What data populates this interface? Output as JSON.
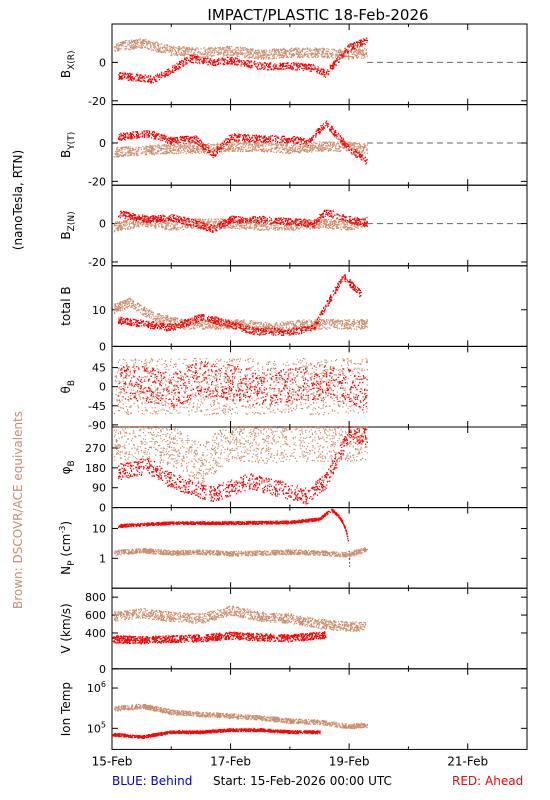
{
  "title": "IMPACT/PLASTIC   18-Feb-2026",
  "side_label_left": "(nanoTesla, RTN)",
  "side_label_brown": "Brown: DSCOVR/ACE equivalents",
  "footer": {
    "blue": "BLUE: Behind",
    "start": "Start: 15-Feb-2026 00:00 UTC",
    "red": "RED: Ahead"
  },
  "colors": {
    "ahead": "#ff0000",
    "ace": "#c98e6e",
    "behind": "#0000cc",
    "dash": "#666666"
  },
  "chart_data": {
    "type": "scatter",
    "x_range_days": [
      0,
      7
    ],
    "x_ticks": [
      {
        "day": 0,
        "label": "15-Feb"
      },
      {
        "day": 2,
        "label": "17-Feb"
      },
      {
        "day": 4,
        "label": "19-Feb"
      },
      {
        "day": 6,
        "label": "21-Feb"
      }
    ],
    "panels": [
      {
        "id": "bx",
        "ylabel": "BX(R)",
        "ylabel_main": "B",
        "ylabel_sub": "X(R)",
        "ylim": [
          -22,
          20
        ],
        "ticks": [
          -20,
          0
        ],
        "zero_line": true,
        "ace_profile": [
          [
            0,
            8
          ],
          [
            0.5,
            10
          ],
          [
            1,
            6
          ],
          [
            1.5,
            5
          ],
          [
            2,
            6
          ],
          [
            2.5,
            4
          ],
          [
            3,
            5
          ],
          [
            3.5,
            5
          ],
          [
            4,
            4
          ],
          [
            4.3,
            5
          ]
        ],
        "ahead_profile": [
          [
            0.1,
            -7
          ],
          [
            0.7,
            -9
          ],
          [
            1.0,
            -4
          ],
          [
            1.3,
            2
          ],
          [
            1.7,
            0
          ],
          [
            2.0,
            1
          ],
          [
            2.5,
            -2
          ],
          [
            3.0,
            -2
          ],
          [
            3.4,
            -3
          ],
          [
            3.6,
            -6
          ],
          [
            3.9,
            5
          ],
          [
            4.0,
            8
          ],
          [
            4.3,
            11
          ]
        ]
      },
      {
        "id": "by",
        "ylabel": "BY(T)",
        "ylabel_main": "B",
        "ylabel_sub": "Y(T)",
        "ylim": [
          -22,
          20
        ],
        "ticks": [
          -20,
          0
        ],
        "zero_line": true,
        "ace_profile": [
          [
            0,
            -5
          ],
          [
            0.5,
            -4
          ],
          [
            1,
            -3
          ],
          [
            1.5,
            -3
          ],
          [
            2,
            -2
          ],
          [
            2.5,
            -2
          ],
          [
            3,
            -3
          ],
          [
            3.5,
            -2
          ],
          [
            4,
            -2
          ],
          [
            4.3,
            -3
          ]
        ],
        "ahead_profile": [
          [
            0.1,
            3
          ],
          [
            0.6,
            5
          ],
          [
            1.0,
            1
          ],
          [
            1.4,
            2
          ],
          [
            1.7,
            -6
          ],
          [
            2.0,
            3
          ],
          [
            2.5,
            2
          ],
          [
            3.0,
            2
          ],
          [
            3.3,
            0
          ],
          [
            3.6,
            10
          ],
          [
            4.0,
            -3
          ],
          [
            4.3,
            -10
          ]
        ]
      },
      {
        "id": "bz",
        "ylabel": "BZ(N)",
        "ylabel_main": "B",
        "ylabel_sub": "Z(N)",
        "ylim": [
          -22,
          20
        ],
        "ticks": [
          -20,
          0
        ],
        "zero_line": true,
        "ace_profile": [
          [
            0,
            -2
          ],
          [
            0.5,
            1
          ],
          [
            1,
            -1
          ],
          [
            1.5,
            0
          ],
          [
            2,
            0
          ],
          [
            2.5,
            -1
          ],
          [
            3,
            -1
          ],
          [
            3.5,
            0
          ],
          [
            4,
            -1
          ],
          [
            4.3,
            1
          ]
        ],
        "ahead_profile": [
          [
            0.1,
            5
          ],
          [
            0.6,
            2
          ],
          [
            1.0,
            3
          ],
          [
            1.4,
            0
          ],
          [
            1.7,
            -3
          ],
          [
            2.0,
            2
          ],
          [
            2.5,
            2
          ],
          [
            3.0,
            1
          ],
          [
            3.4,
            0
          ],
          [
            3.6,
            6
          ],
          [
            4.0,
            2
          ],
          [
            4.3,
            0
          ]
        ]
      },
      {
        "id": "bt",
        "ylabel": "total B",
        "ylim": [
          0,
          22
        ],
        "ticks": [
          0,
          10
        ],
        "zero_line": false,
        "ace_profile": [
          [
            0,
            10
          ],
          [
            0.3,
            12
          ],
          [
            0.7,
            8
          ],
          [
            1.2,
            6
          ],
          [
            1.7,
            6
          ],
          [
            2.2,
            6
          ],
          [
            2.7,
            5
          ],
          [
            3.2,
            6
          ],
          [
            3.6,
            6
          ],
          [
            4.0,
            6
          ],
          [
            4.3,
            6
          ]
        ],
        "ahead_profile": [
          [
            0.1,
            7
          ],
          [
            0.6,
            6
          ],
          [
            1.0,
            5
          ],
          [
            1.5,
            8
          ],
          [
            2.0,
            6
          ],
          [
            2.4,
            4
          ],
          [
            3.0,
            4
          ],
          [
            3.4,
            5
          ],
          [
            3.6,
            11
          ],
          [
            3.9,
            19
          ],
          [
            4.2,
            14
          ]
        ]
      },
      {
        "id": "theta",
        "ylabel": "θB",
        "ylabel_main": "θ",
        "ylabel_sub": "B",
        "ylim": [
          -95,
          95
        ],
        "ticks": [
          -90,
          -45,
          0,
          45
        ],
        "zero_line": false,
        "ace_profile": [
          [
            0,
            0
          ],
          [
            1,
            0
          ],
          [
            2,
            0
          ],
          [
            3,
            0
          ],
          [
            4,
            0
          ],
          [
            4.3,
            0
          ]
        ],
        "ahead_profile": [
          [
            0.1,
            10
          ],
          [
            0.6,
            5
          ],
          [
            1.0,
            -10
          ],
          [
            1.5,
            20
          ],
          [
            2.0,
            10
          ],
          [
            2.5,
            -5
          ],
          [
            3.0,
            5
          ],
          [
            3.5,
            10
          ],
          [
            4.0,
            0
          ],
          [
            4.3,
            -20
          ]
        ]
      },
      {
        "id": "phi",
        "ylabel": "φB",
        "ylabel_main": "φ",
        "ylabel_sub": "B",
        "ylim": [
          0,
          365
        ],
        "ticks": [
          0,
          90,
          180,
          270
        ],
        "zero_line": false,
        "ace_profile": [
          [
            0,
            300
          ],
          [
            0.5,
            310
          ],
          [
            1,
            280
          ],
          [
            1.5,
            200
          ],
          [
            2,
            300
          ],
          [
            2.5,
            290
          ],
          [
            3,
            300
          ],
          [
            3.5,
            300
          ],
          [
            4,
            300
          ],
          [
            4.3,
            310
          ]
        ],
        "ahead_profile": [
          [
            0.1,
            160
          ],
          [
            0.6,
            190
          ],
          [
            1.0,
            120
          ],
          [
            1.7,
            60
          ],
          [
            2.3,
            120
          ],
          [
            3.3,
            50
          ],
          [
            3.6,
            120
          ],
          [
            4.0,
            330
          ],
          [
            4.3,
            320
          ]
        ]
      },
      {
        "id": "np",
        "ylabel": "Np (cm-3)",
        "ylabel_main": "N",
        "ylabel_sub": "P",
        "ylabel_tail": " (cm",
        "ylabel_sup": "-3",
        "ylabel_end": ")",
        "ylim": [
          0.1,
          50
        ],
        "log": true,
        "ticks": [
          1,
          10
        ],
        "zero_line": false,
        "ace_profile": [
          [
            0,
            1.5
          ],
          [
            0.5,
            1.8
          ],
          [
            1,
            1.5
          ],
          [
            1.5,
            1.6
          ],
          [
            2,
            1.4
          ],
          [
            2.5,
            1.5
          ],
          [
            3,
            1.6
          ],
          [
            3.5,
            1.5
          ],
          [
            4,
            1.3
          ],
          [
            4.3,
            2
          ]
        ],
        "ahead_profile": [
          [
            0.1,
            12
          ],
          [
            1.0,
            15
          ],
          [
            2.0,
            15
          ],
          [
            3.0,
            16
          ],
          [
            3.5,
            20
          ],
          [
            3.7,
            40
          ],
          [
            4.0,
            0.5
          ]
        ]
      },
      {
        "id": "v",
        "ylabel": "V (km/s)",
        "ylim": [
          0,
          900
        ],
        "ticks": [
          0,
          400,
          600,
          800
        ],
        "zero_line": false,
        "ace_profile": [
          [
            0,
            580
          ],
          [
            0.5,
            620
          ],
          [
            1,
            580
          ],
          [
            1.5,
            560
          ],
          [
            2,
            650
          ],
          [
            2.5,
            580
          ],
          [
            3,
            560
          ],
          [
            3.5,
            500
          ],
          [
            4,
            470
          ],
          [
            4.3,
            480
          ]
        ],
        "ahead_profile": [
          [
            0,
            330
          ],
          [
            0.5,
            320
          ],
          [
            1.0,
            330
          ],
          [
            1.5,
            340
          ],
          [
            2.0,
            370
          ],
          [
            2.5,
            350
          ],
          [
            3.0,
            340
          ],
          [
            3.6,
            380
          ]
        ]
      },
      {
        "id": "temp",
        "ylabel": "Ion Temp",
        "ylim": [
          30000,
          3000000
        ],
        "log": true,
        "ticks": [
          100000,
          1000000
        ],
        "tick_labels": [
          "10^5",
          "10^6"
        ],
        "zero_line": false,
        "ace_profile": [
          [
            0,
            300000
          ],
          [
            0.5,
            350000
          ],
          [
            1,
            250000
          ],
          [
            1.5,
            220000
          ],
          [
            2,
            200000
          ],
          [
            2.5,
            180000
          ],
          [
            3,
            150000
          ],
          [
            3.5,
            140000
          ],
          [
            4,
            110000
          ],
          [
            4.3,
            120000
          ]
        ],
        "ahead_profile": [
          [
            0,
            70000
          ],
          [
            0.5,
            60000
          ],
          [
            1.0,
            80000
          ],
          [
            1.5,
            80000
          ],
          [
            2.0,
            90000
          ],
          [
            2.5,
            90000
          ],
          [
            3.0,
            80000
          ],
          [
            3.5,
            80000
          ]
        ]
      }
    ]
  }
}
